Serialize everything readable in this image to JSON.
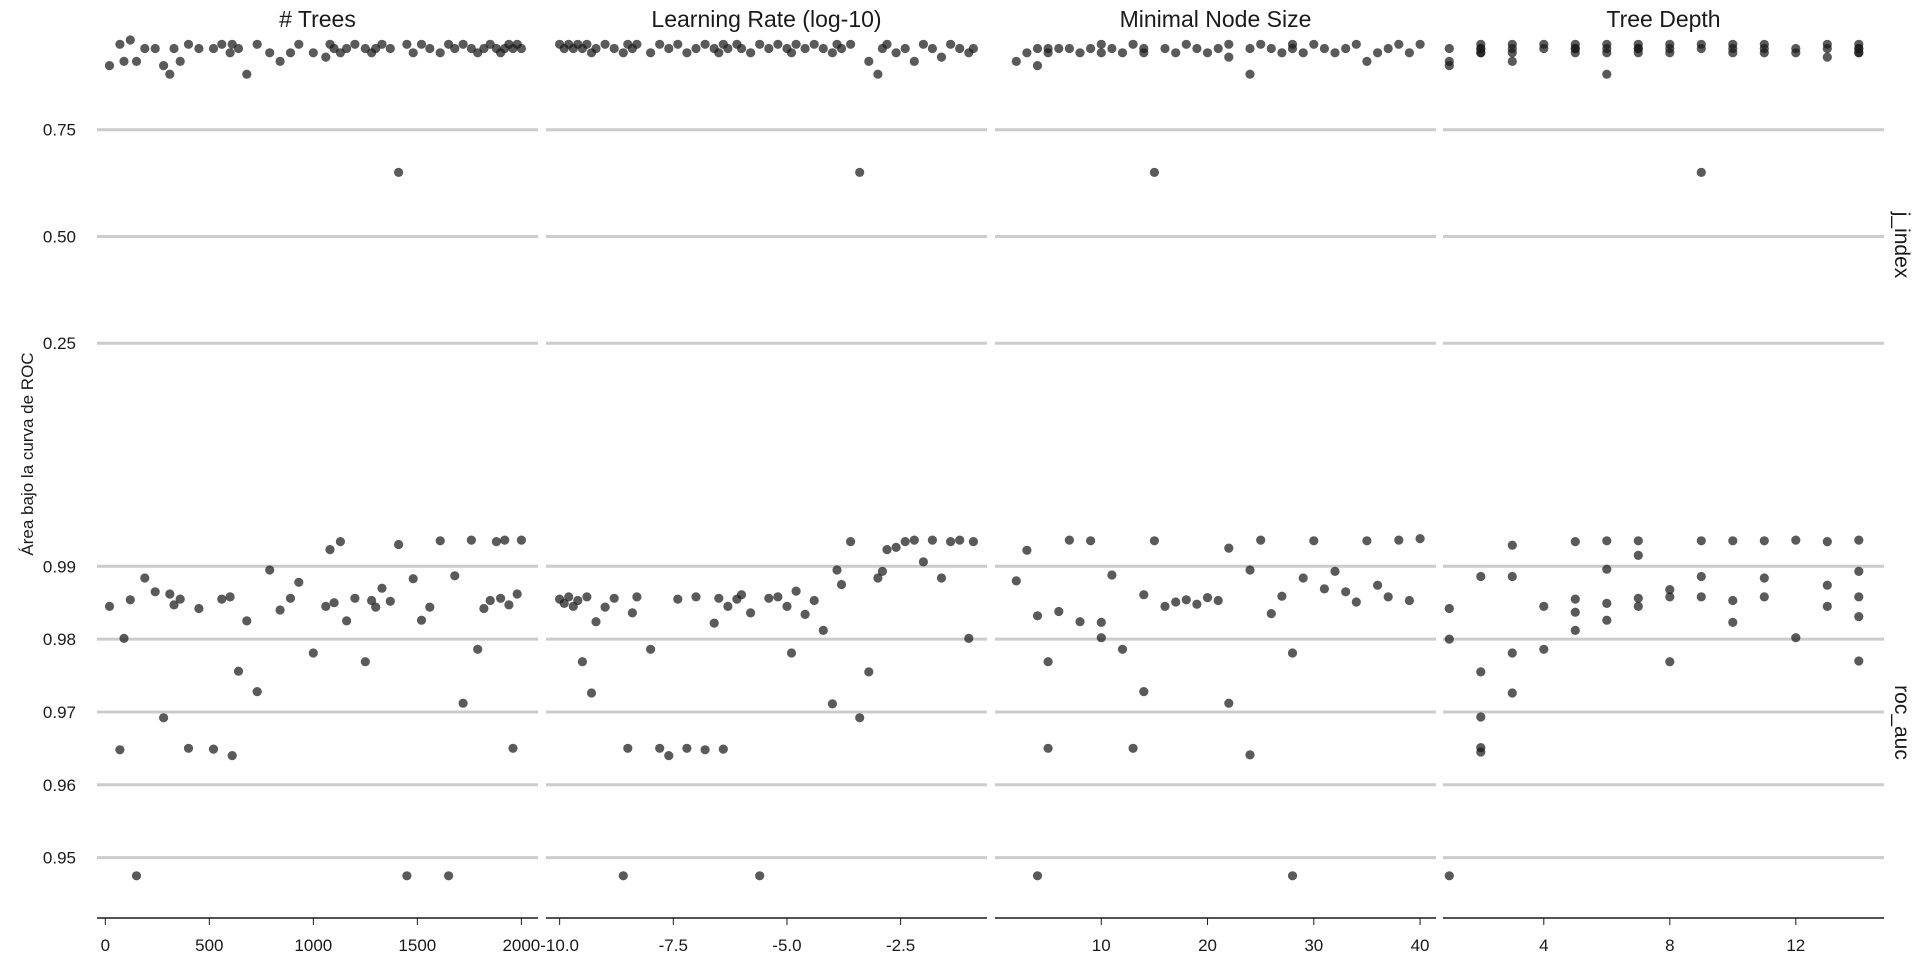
{
  "chart_data": {
    "type": "scatter",
    "ylabel": "Área bajo la curva de ROC",
    "grid": "horizontal",
    "point_color": "#1a1a1a",
    "grid_color": "#cccccc",
    "rows": [
      {
        "label": "j_index",
        "yticks": [
          0.25,
          0.5,
          0.75
        ],
        "tick_labels": [
          "0.25",
          "0.50",
          "0.75"
        ],
        "ylim": [
          0.0,
          0.96
        ]
      },
      {
        "label": "roc_auc",
        "yticks": [
          0.95,
          0.96,
          0.97,
          0.98,
          0.99
        ],
        "tick_labels": [
          "0.95",
          "0.96",
          "0.97",
          "0.98",
          "0.99"
        ],
        "ylim": [
          0.9428,
          0.9943
        ]
      }
    ],
    "panels": [
      {
        "title": "# Trees",
        "xticks": [
          0,
          500,
          1000,
          1500,
          2000
        ],
        "xtick_labels": [
          "0",
          "500",
          "1000",
          "1500",
          "2000"
        ],
        "xlim": [
          -40,
          2080
        ],
        "x": [
          20,
          70,
          90,
          120,
          150,
          190,
          240,
          280,
          310,
          330,
          360,
          400,
          450,
          520,
          560,
          600,
          610,
          640,
          680,
          730,
          790,
          840,
          890,
          930,
          1000,
          1060,
          1080,
          1100,
          1130,
          1160,
          1200,
          1250,
          1280,
          1300,
          1330,
          1370,
          1410,
          1450,
          1480,
          1520,
          1560,
          1610,
          1650,
          1680,
          1720,
          1760,
          1790,
          1820,
          1850,
          1880,
          1900,
          1920,
          1940,
          1960,
          1980,
          2000
        ],
        "j_index": [
          0.9,
          0.95,
          0.91,
          0.96,
          0.91,
          0.94,
          0.94,
          0.9,
          0.88,
          0.94,
          0.91,
          0.95,
          0.94,
          0.94,
          0.95,
          0.93,
          0.95,
          0.94,
          0.88,
          0.95,
          0.93,
          0.91,
          0.93,
          0.95,
          0.93,
          0.92,
          0.95,
          0.94,
          0.93,
          0.94,
          0.95,
          0.94,
          0.93,
          0.94,
          0.95,
          0.94,
          0.65,
          0.95,
          0.93,
          0.95,
          0.94,
          0.93,
          0.95,
          0.94,
          0.95,
          0.94,
          0.93,
          0.94,
          0.95,
          0.94,
          0.93,
          0.94,
          0.95,
          0.94,
          0.95,
          0.94
        ],
        "roc_auc": [
          0.9845,
          0.9648,
          0.9801,
          0.9854,
          0.9475,
          0.9884,
          0.9865,
          0.9692,
          0.9862,
          0.9847,
          0.9855,
          0.965,
          0.9842,
          0.9649,
          0.9855,
          0.9858,
          0.964,
          0.9756,
          0.9825,
          0.9728,
          0.9895,
          0.984,
          0.9856,
          0.9878,
          0.9781,
          0.9845,
          0.9923,
          0.985,
          0.9934,
          0.9825,
          0.9856,
          0.9769,
          0.9853,
          0.9844,
          0.987,
          0.9852,
          0.993,
          0.9475,
          0.9883,
          0.9826,
          0.9844,
          0.9935,
          0.9475,
          0.9887,
          0.9712,
          0.9936,
          0.9786,
          0.9842,
          0.9853,
          0.9934,
          0.9856,
          0.9936,
          0.9847,
          0.965,
          0.9862,
          0.9936
        ]
      },
      {
        "title": "Learning Rate (log-10)",
        "xticks": [
          -10.0,
          -7.5,
          -5.0,
          -2.5
        ],
        "xtick_labels": [
          "-10.0",
          "-7.5",
          "-5.0",
          "-2.5"
        ],
        "xlim": [
          -10.3,
          -0.6
        ],
        "x": [
          -10.0,
          -9.9,
          -9.8,
          -9.7,
          -9.6,
          -9.5,
          -9.4,
          -9.3,
          -9.2,
          -9.0,
          -8.8,
          -8.6,
          -8.5,
          -8.4,
          -8.3,
          -8.0,
          -7.8,
          -7.6,
          -7.4,
          -7.2,
          -7.0,
          -6.8,
          -6.6,
          -6.5,
          -6.4,
          -6.3,
          -6.1,
          -6.0,
          -5.8,
          -5.6,
          -5.4,
          -5.2,
          -5.0,
          -4.9,
          -4.8,
          -4.6,
          -4.4,
          -4.2,
          -4.0,
          -3.9,
          -3.8,
          -3.6,
          -3.4,
          -3.2,
          -3.0,
          -2.9,
          -2.8,
          -2.6,
          -2.4,
          -2.2,
          -2.0,
          -1.8,
          -1.6,
          -1.4,
          -1.2,
          -1.0,
          -0.9
        ],
        "j_index": [
          0.95,
          0.94,
          0.95,
          0.94,
          0.95,
          0.94,
          0.95,
          0.93,
          0.94,
          0.95,
          0.94,
          0.93,
          0.95,
          0.94,
          0.95,
          0.93,
          0.95,
          0.94,
          0.95,
          0.93,
          0.94,
          0.95,
          0.94,
          0.93,
          0.95,
          0.94,
          0.95,
          0.94,
          0.93,
          0.95,
          0.94,
          0.95,
          0.94,
          0.93,
          0.95,
          0.94,
          0.95,
          0.94,
          0.93,
          0.95,
          0.94,
          0.95,
          0.65,
          0.91,
          0.88,
          0.94,
          0.95,
          0.93,
          0.94,
          0.91,
          0.95,
          0.94,
          0.92,
          0.95,
          0.94,
          0.93,
          0.94
        ],
        "roc_auc": [
          0.9855,
          0.9849,
          0.9858,
          0.9845,
          0.9853,
          0.9769,
          0.9858,
          0.9726,
          0.9824,
          0.9844,
          0.9856,
          0.9475,
          0.965,
          0.9836,
          0.9858,
          0.9786,
          0.965,
          0.964,
          0.9855,
          0.965,
          0.9858,
          0.9648,
          0.9822,
          0.9856,
          0.9649,
          0.9845,
          0.9855,
          0.9861,
          0.9836,
          0.9475,
          0.9856,
          0.9858,
          0.9845,
          0.9781,
          0.9866,
          0.9834,
          0.9853,
          0.9812,
          0.9711,
          0.9895,
          0.9875,
          0.9934,
          0.9692,
          0.9755,
          0.9884,
          0.9893,
          0.9923,
          0.9926,
          0.9934,
          0.9936,
          0.9906,
          0.9936,
          0.9884,
          0.9934,
          0.9936,
          0.9801,
          0.9934
        ]
      },
      {
        "title": "Minimal Node Size",
        "xticks": [
          10,
          20,
          30,
          40
        ],
        "xtick_labels": [
          "10",
          "20",
          "30",
          "40"
        ],
        "xlim": [
          0,
          41.5
        ],
        "x": [
          2,
          3,
          4,
          4,
          5,
          5,
          6,
          7,
          8,
          9,
          10,
          10,
          11,
          12,
          13,
          14,
          14,
          15,
          16,
          17,
          18,
          19,
          20,
          21,
          22,
          22,
          24,
          24,
          25,
          26,
          27,
          28,
          28,
          29,
          30,
          31,
          32,
          33,
          34,
          35,
          36,
          37,
          38,
          39,
          40
        ],
        "j_index": [
          0.91,
          0.93,
          0.9,
          0.94,
          0.94,
          0.93,
          0.94,
          0.94,
          0.93,
          0.94,
          0.93,
          0.95,
          0.94,
          0.93,
          0.95,
          0.94,
          0.93,
          0.65,
          0.94,
          0.93,
          0.95,
          0.94,
          0.93,
          0.94,
          0.92,
          0.95,
          0.88,
          0.94,
          0.95,
          0.94,
          0.93,
          0.95,
          0.94,
          0.93,
          0.95,
          0.94,
          0.93,
          0.94,
          0.95,
          0.91,
          0.93,
          0.94,
          0.95,
          0.93,
          0.95
        ],
        "roc_auc": [
          0.988,
          0.9922,
          0.9832,
          0.9475,
          0.9769,
          0.965,
          0.9838,
          0.9936,
          0.9824,
          0.9935,
          0.9823,
          0.9802,
          0.9888,
          0.9786,
          0.965,
          0.9728,
          0.9861,
          0.9935,
          0.9845,
          0.9851,
          0.9854,
          0.9848,
          0.9857,
          0.9853,
          0.9712,
          0.9925,
          0.9641,
          0.9895,
          0.9936,
          0.9835,
          0.9859,
          0.9475,
          0.9781,
          0.9884,
          0.9935,
          0.9869,
          0.9893,
          0.9865,
          0.9851,
          0.9935,
          0.9874,
          0.9858,
          0.9936,
          0.9853,
          0.9938
        ]
      },
      {
        "title": "Tree Depth",
        "xticks": [
          4,
          8,
          12
        ],
        "xtick_labels": [
          "4",
          "8",
          "12"
        ],
        "xlim": [
          0.8,
          14.8
        ],
        "x": [
          1,
          1,
          1,
          2,
          2,
          2,
          2,
          2,
          3,
          3,
          3,
          3,
          4,
          4,
          5,
          5,
          5,
          5,
          6,
          6,
          6,
          6,
          7,
          7,
          7,
          7,
          8,
          8,
          8,
          9,
          9,
          9,
          10,
          10,
          10,
          11,
          11,
          11,
          12,
          12,
          13,
          13,
          13,
          14,
          14,
          14,
          14,
          14
        ],
        "j_index": [
          0.91,
          0.9,
          0.94,
          0.93,
          0.94,
          0.93,
          0.95,
          0.94,
          0.91,
          0.95,
          0.94,
          0.93,
          0.94,
          0.95,
          0.95,
          0.94,
          0.93,
          0.94,
          0.88,
          0.95,
          0.94,
          0.93,
          0.94,
          0.95,
          0.93,
          0.94,
          0.95,
          0.94,
          0.93,
          0.65,
          0.94,
          0.95,
          0.94,
          0.93,
          0.95,
          0.94,
          0.93,
          0.95,
          0.94,
          0.93,
          0.92,
          0.94,
          0.95,
          0.93,
          0.94,
          0.95,
          0.93,
          0.94
        ],
        "roc_auc": [
          0.9475,
          0.98,
          0.9842,
          0.9651,
          0.9645,
          0.9693,
          0.9755,
          0.9886,
          0.9726,
          0.9781,
          0.9886,
          0.9929,
          0.9786,
          0.9845,
          0.9837,
          0.9812,
          0.9855,
          0.9934,
          0.9826,
          0.9849,
          0.9896,
          0.9935,
          0.9845,
          0.9856,
          0.9915,
          0.9935,
          0.9769,
          0.9858,
          0.9868,
          0.9858,
          0.9886,
          0.9935,
          0.9823,
          0.9853,
          0.9935,
          0.9858,
          0.9884,
          0.9935,
          0.9802,
          0.9936,
          0.9845,
          0.9874,
          0.9934,
          0.977,
          0.9831,
          0.9858,
          0.9893,
          0.9936
        ]
      }
    ]
  }
}
